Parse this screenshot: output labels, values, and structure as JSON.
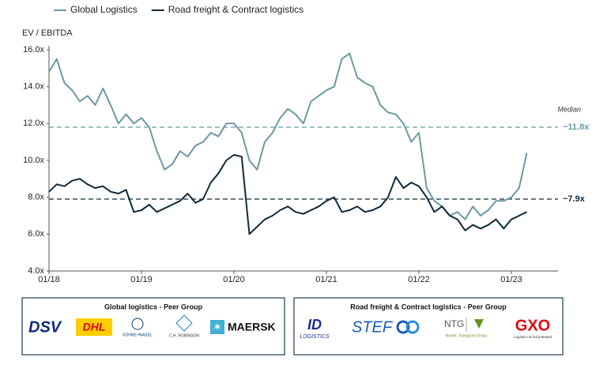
{
  "chart_data": {
    "type": "line",
    "y_axis_label": "EV / EBITDA",
    "x": [
      "01/18",
      "02/18",
      "03/18",
      "04/18",
      "05/18",
      "06/18",
      "07/18",
      "08/18",
      "09/18",
      "10/18",
      "11/18",
      "12/18",
      "01/19",
      "02/19",
      "03/19",
      "04/19",
      "05/19",
      "06/19",
      "07/19",
      "08/19",
      "09/19",
      "10/19",
      "11/19",
      "12/19",
      "01/20",
      "02/20",
      "03/20",
      "04/20",
      "05/20",
      "06/20",
      "07/20",
      "08/20",
      "09/20",
      "10/20",
      "11/20",
      "12/20",
      "01/21",
      "02/21",
      "03/21",
      "04/21",
      "05/21",
      "06/21",
      "07/21",
      "08/21",
      "09/21",
      "10/21",
      "11/21",
      "12/21",
      "01/22",
      "02/22",
      "03/22",
      "04/22",
      "05/22",
      "06/22",
      "07/22",
      "08/22",
      "09/22",
      "10/22",
      "11/22",
      "12/22",
      "01/23",
      "02/23",
      "03/23"
    ],
    "xticks": [
      "01/18",
      "01/19",
      "01/20",
      "01/21",
      "01/22",
      "01/23"
    ],
    "series": [
      {
        "name": "Global Logistics",
        "color": "#6b99a5",
        "values": [
          14.8,
          15.5,
          14.2,
          13.8,
          13.2,
          13.5,
          13.0,
          13.9,
          13.0,
          12.0,
          12.5,
          12.0,
          12.3,
          11.8,
          10.5,
          9.5,
          9.8,
          10.5,
          10.2,
          10.8,
          11.0,
          11.5,
          11.3,
          12.0,
          12.0,
          11.5,
          10.0,
          9.5,
          11.0,
          11.5,
          12.3,
          12.8,
          12.5,
          12.0,
          13.2,
          13.5,
          13.8,
          14.0,
          15.5,
          15.8,
          14.5,
          14.2,
          14.0,
          13.0,
          12.6,
          12.5,
          12.0,
          11.0,
          11.5,
          8.5,
          7.8,
          7.5,
          7.0,
          7.2,
          6.8,
          7.5,
          7.0,
          7.3,
          7.8,
          7.8,
          8.0,
          8.5,
          10.4
        ]
      },
      {
        "name": "Road freight & Contract logistics",
        "color": "#0e2a3b",
        "values": [
          8.3,
          8.7,
          8.6,
          8.9,
          9.0,
          8.7,
          8.5,
          8.6,
          8.3,
          8.2,
          8.4,
          7.2,
          7.3,
          7.6,
          7.2,
          7.4,
          7.6,
          7.8,
          8.2,
          7.7,
          7.9,
          8.8,
          9.3,
          10.0,
          10.3,
          10.2,
          6.0,
          6.4,
          6.8,
          7.0,
          7.3,
          7.5,
          7.2,
          7.1,
          7.3,
          7.5,
          7.8,
          8.0,
          7.2,
          7.3,
          7.5,
          7.2,
          7.3,
          7.5,
          8.0,
          9.1,
          8.5,
          8.8,
          8.6,
          8.0,
          7.2,
          7.5,
          7.0,
          6.8,
          6.2,
          6.5,
          6.3,
          6.5,
          6.8,
          6.3,
          6.8,
          7.0,
          7.2
        ]
      }
    ],
    "ylim": [
      4,
      16
    ],
    "yticks": [
      {
        "value": 4,
        "label": "4.0x"
      },
      {
        "value": 6,
        "label": "6.0x"
      },
      {
        "value": 8,
        "label": "8.0x"
      },
      {
        "value": 10,
        "label": "10.0x"
      },
      {
        "value": 12,
        "label": "12.0x"
      },
      {
        "value": 14,
        "label": "14.0x"
      },
      {
        "value": 16,
        "label": "16.0x"
      }
    ],
    "median_title": "Median",
    "medians": [
      {
        "value": 11.8,
        "label": "~11.8x",
        "color": "#6b99a5"
      },
      {
        "value": 7.9,
        "label": "~7.9x",
        "color": "#0e2a3b"
      }
    ],
    "legend": "top-left"
  },
  "peer_groups": [
    {
      "title": "Global logistics - Peer Group",
      "logos": [
        "DSV",
        "DHL",
        "KÜHNE+NAGEL",
        "C.H. ROBINSON",
        "MAERSK"
      ]
    },
    {
      "title": "Road freight & Contract logistics - Peer Group",
      "logos": [
        "ID",
        "LOGISTICS",
        "STEF",
        "NTG",
        "Nordic Transport Group",
        "GXO",
        "Logistics at full potential"
      ]
    }
  ]
}
